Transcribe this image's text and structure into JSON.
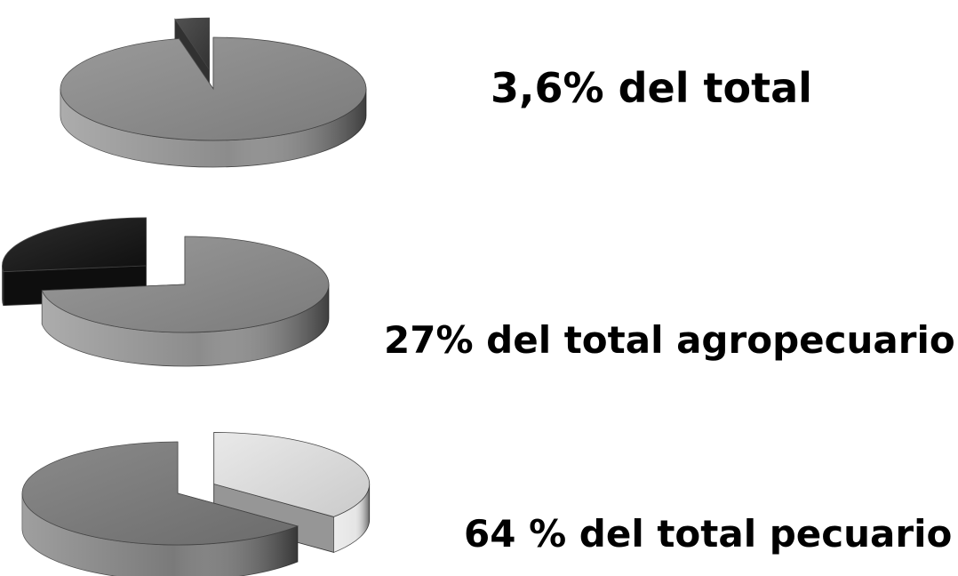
{
  "chart_data": [
    {
      "type": "pie",
      "style": "3d-exploded",
      "caption": "3,6% del total",
      "slices": [
        {
          "value": 96.4,
          "color": "#8c8c8c"
        },
        {
          "value": 3.6,
          "color": "#3a3a3a",
          "exploded": true
        }
      ]
    },
    {
      "type": "pie",
      "style": "3d-exploded",
      "caption": "27% del total agropecuario",
      "slices": [
        {
          "value": 73,
          "color": "#8c8c8c"
        },
        {
          "value": 27,
          "color": "#111111",
          "exploded": true
        }
      ]
    },
    {
      "type": "pie",
      "style": "3d-exploded",
      "caption": "64 % del total pecuario",
      "slices": [
        {
          "value": 64,
          "color": "#7a7a7a"
        },
        {
          "value": 36,
          "color": "#e6e6e6",
          "exploded": true
        }
      ]
    }
  ]
}
